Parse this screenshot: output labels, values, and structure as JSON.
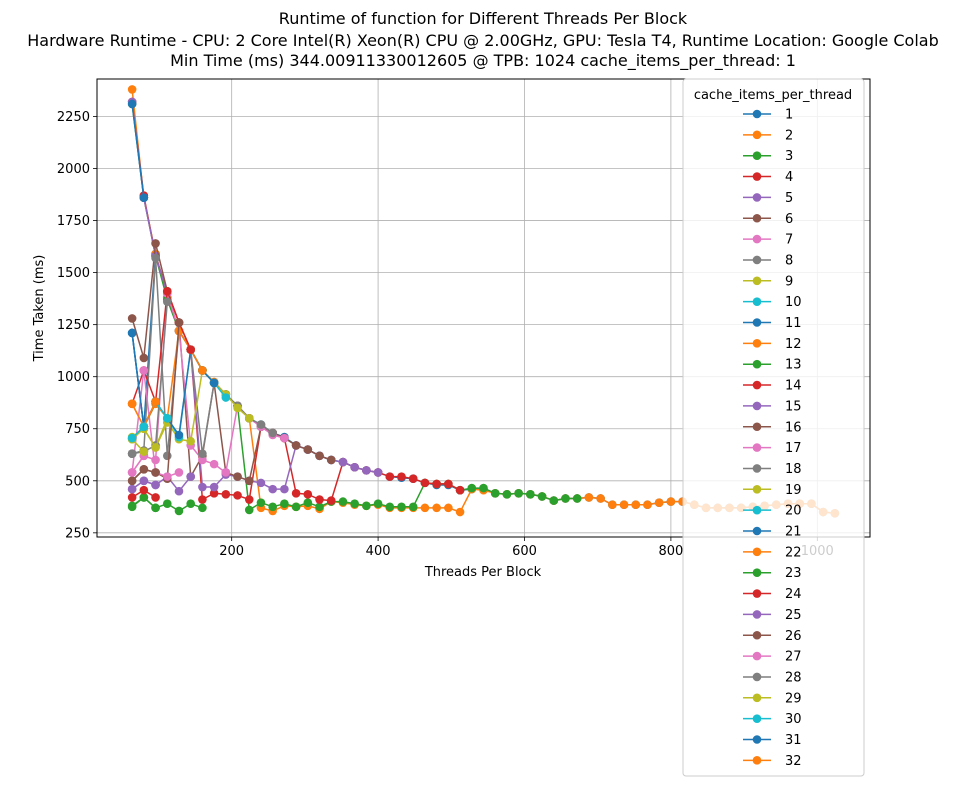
{
  "chart_data": {
    "type": "line",
    "title_lines": [
      "Runtime of function for Different Threads Per Block",
      "Hardware Runtime - CPU: 2 Core Intel(R) Xeon(R) CPU @ 2.00GHz, GPU: Tesla T4, Runtime Location: Google Colab",
      "Min Time (ms) 344.00911330012605 @ TPB: 1024 cache_items_per_thread: 1"
    ],
    "xlabel": "Threads Per Block",
    "ylabel": "Time Taken (ms)",
    "xlim": [
      16,
      1072
    ],
    "ylim": [
      230,
      2430
    ],
    "xticks": [
      200,
      400,
      600,
      800,
      1000
    ],
    "yticks": [
      250,
      500,
      750,
      1000,
      1250,
      1500,
      1750,
      2000,
      2250
    ],
    "grid": true,
    "legend": {
      "title": "cache_items_per_thread",
      "placement": "upper right"
    },
    "colors": [
      "#1f77b4",
      "#ff7f0e",
      "#2ca02c",
      "#d62728",
      "#9467bd",
      "#8c564b",
      "#e377c2",
      "#7f7f7f",
      "#bcbd22",
      "#17becf"
    ],
    "series": [
      {
        "name": "1",
        "x": [
          64,
          80,
          96,
          112,
          128,
          144,
          160,
          176,
          192,
          208,
          224,
          240,
          256,
          272,
          288,
          304,
          320,
          336,
          352,
          368,
          384,
          400,
          416,
          432,
          448,
          464,
          480,
          496,
          512,
          528,
          544,
          560,
          576,
          592,
          608,
          624,
          640,
          656,
          672,
          688,
          704,
          720,
          736,
          752,
          768,
          784,
          800,
          816,
          832,
          848,
          864,
          880,
          896,
          912,
          928,
          944,
          960,
          976,
          992,
          1008,
          1024
        ],
        "y": [
          1210,
          760,
          1590,
          1380,
          1220,
          1130,
          1030,
          970,
          915,
          860,
          800,
          770,
          730,
          710,
          670,
          650,
          620,
          600,
          590,
          565,
          550,
          540,
          520,
          515,
          510,
          490,
          480,
          480,
          455,
          460,
          460,
          440,
          435,
          440,
          435,
          425,
          405,
          415,
          415,
          420,
          415,
          385,
          385,
          385,
          385,
          395,
          400,
          400,
          385,
          370,
          370,
          370,
          370,
          375,
          380,
          385,
          390,
          390,
          390,
          350,
          344
        ]
      },
      {
        "name": "2",
        "x": [
          64,
          80,
          96,
          112,
          128,
          144,
          160,
          176,
          192,
          208,
          224,
          240,
          256,
          272,
          288,
          304,
          320,
          336,
          352,
          368,
          384,
          400,
          416,
          432,
          448,
          464,
          480,
          496,
          512,
          528,
          544,
          560,
          576,
          592,
          608,
          624,
          640,
          656,
          672,
          688,
          704,
          720,
          736,
          752,
          768,
          784,
          800,
          816,
          832,
          848,
          864,
          880,
          896,
          912,
          928,
          944,
          960,
          976,
          992,
          1008,
          1024
        ],
        "y": [
          2380,
          1860,
          1590,
          1380,
          1220,
          1130,
          1030,
          975,
          915,
          860,
          800,
          370,
          355,
          380,
          375,
          380,
          365,
          400,
          395,
          385,
          380,
          385,
          370,
          370,
          370,
          370,
          370,
          370,
          350,
          460,
          455,
          440,
          435,
          440,
          435,
          425,
          405,
          415,
          415,
          420,
          415,
          385,
          385,
          385,
          385,
          395,
          400,
          400,
          385,
          370,
          370,
          370,
          370,
          375,
          380,
          385,
          390,
          390,
          390,
          350,
          344
        ]
      },
      {
        "name": "3",
        "x": [
          64,
          80,
          96,
          112,
          128,
          144,
          160,
          176,
          192,
          208,
          224,
          240,
          256,
          272,
          288,
          304,
          320,
          336,
          352,
          368,
          384,
          400,
          416,
          432,
          448,
          464,
          480,
          496,
          512,
          528,
          544,
          560,
          576,
          592,
          608,
          624,
          640,
          656,
          672
        ],
        "y": [
          2310,
          1860,
          1580,
          1370,
          1220,
          1130,
          1030,
          970,
          915,
          860,
          360,
          395,
          375,
          390,
          375,
          395,
          375,
          400,
          400,
          390,
          380,
          390,
          375,
          375,
          375,
          490,
          485,
          485,
          455,
          465,
          465,
          440,
          435,
          440,
          435,
          425,
          405,
          415,
          415
        ]
      },
      {
        "name": "4",
        "x": [
          64,
          80,
          96,
          112,
          128,
          144,
          160,
          176,
          192,
          208,
          224,
          240,
          256,
          272,
          288,
          304,
          320,
          336,
          352,
          368,
          384,
          400,
          416,
          432,
          448,
          464,
          480,
          496,
          512
        ],
        "y": [
          2320,
          1870,
          1580,
          1410,
          1260,
          1130,
          410,
          440,
          435,
          430,
          410,
          760,
          730,
          705,
          440,
          435,
          410,
          405,
          590,
          565,
          550,
          540,
          520,
          520,
          510,
          490,
          485,
          485,
          455
        ]
      },
      {
        "name": "5",
        "x": [
          64,
          80,
          96,
          112,
          128,
          144,
          160,
          176,
          192,
          208,
          224,
          240,
          256,
          272,
          288,
          304,
          320,
          336,
          352,
          368,
          384,
          400
        ],
        "y": [
          2320,
          1860,
          1580,
          1400,
          1220,
          1130,
          470,
          470,
          530,
          520,
          500,
          490,
          460,
          460,
          670,
          650,
          620,
          600,
          590,
          565,
          550,
          540
        ]
      },
      {
        "name": "6",
        "x": [
          64,
          80,
          96,
          112,
          128,
          144,
          160,
          176,
          192,
          208,
          224,
          240,
          256,
          272,
          288,
          304,
          320,
          336
        ],
        "y": [
          1280,
          1090,
          1640,
          1410,
          1260,
          520,
          620,
          970,
          540,
          520,
          500,
          760,
          730,
          705,
          670,
          650,
          620,
          600
        ]
      },
      {
        "name": "7",
        "x": [
          64,
          80,
          96,
          112,
          128,
          144,
          160,
          176,
          192,
          208,
          224,
          240,
          256,
          272
        ],
        "y": [
          540,
          620,
          600,
          1400,
          1220,
          670,
          600,
          580,
          540,
          860,
          800,
          760,
          720,
          705
        ]
      },
      {
        "name": "8",
        "x": [
          64,
          80,
          96,
          112,
          128,
          144,
          160,
          176,
          192,
          208,
          224,
          240,
          256
        ],
        "y": [
          630,
          645,
          1570,
          620,
          1220,
          1130,
          630,
          970,
          915,
          860,
          800,
          770,
          730
        ]
      },
      {
        "name": "9",
        "x": [
          64,
          80,
          96,
          112,
          128,
          144,
          160,
          176,
          192,
          208,
          224
        ],
        "y": [
          710,
          750,
          660,
          780,
          700,
          690,
          1030,
          970,
          915,
          850,
          800
        ]
      },
      {
        "name": "10",
        "x": [
          64,
          80,
          96,
          112,
          128,
          144,
          160,
          176,
          192
        ],
        "y": [
          705,
          760,
          870,
          800,
          710,
          1130,
          1030,
          970,
          900
        ]
      },
      {
        "name": "11",
        "x": [
          64,
          80,
          96,
          112,
          128,
          144,
          160,
          176
        ],
        "y": [
          1210,
          760,
          880,
          800,
          720,
          1130,
          1030,
          970
        ]
      },
      {
        "name": "12",
        "x": [
          64,
          80,
          96,
          112,
          128,
          144,
          160
        ],
        "y": [
          870,
          760,
          870,
          800,
          1220,
          1130,
          1030
        ]
      },
      {
        "name": "13",
        "x": [
          64,
          80,
          96,
          112,
          128,
          144,
          160
        ],
        "y": [
          375,
          420,
          370,
          390,
          355,
          390,
          370
        ]
      },
      {
        "name": "14",
        "x": [
          64,
          80,
          96,
          112,
          128,
          144
        ],
        "y": [
          870,
          1030,
          880,
          1410,
          1260,
          1130
        ]
      },
      {
        "name": "15",
        "x": [
          64,
          80,
          96,
          112,
          128,
          144
        ],
        "y": [
          460,
          500,
          480,
          520,
          450,
          520
        ]
      },
      {
        "name": "16",
        "x": [
          64,
          80,
          96,
          112,
          128
        ],
        "y": [
          500,
          555,
          540,
          510,
          1260
        ]
      },
      {
        "name": "17",
        "x": [
          64,
          80,
          96,
          112,
          128
        ],
        "y": [
          540,
          1030,
          540,
          520,
          540
        ]
      },
      {
        "name": "18",
        "x": [
          64,
          80,
          96,
          112
        ],
        "y": [
          630,
          640,
          670,
          1360
        ]
      },
      {
        "name": "19",
        "x": [
          64,
          80,
          96,
          112
        ],
        "y": [
          700,
          750,
          660,
          800
        ]
      },
      {
        "name": "20",
        "x": [
          64,
          80,
          96,
          112
        ],
        "y": [
          705,
          760,
          880,
          800
        ]
      },
      {
        "name": "21",
        "x": [
          64,
          80,
          96
        ],
        "y": [
          1210,
          760,
          880
        ]
      },
      {
        "name": "22",
        "x": [
          64,
          80,
          96
        ],
        "y": [
          870,
          760,
          880
        ]
      },
      {
        "name": "23",
        "x": [
          64,
          80,
          96
        ],
        "y": [
          380,
          420,
          370
        ]
      },
      {
        "name": "24",
        "x": [
          64,
          80,
          96
        ],
        "y": [
          420,
          455,
          420
        ]
      },
      {
        "name": "25",
        "x": [
          64,
          80,
          96
        ],
        "y": [
          460,
          500,
          480
        ]
      },
      {
        "name": "26",
        "x": [
          64,
          80,
          96
        ],
        "y": [
          500,
          555,
          540
        ]
      },
      {
        "name": "27",
        "x": [
          64,
          80
        ],
        "y": [
          540,
          620
        ]
      },
      {
        "name": "28",
        "x": [
          64,
          80
        ],
        "y": [
          630,
          645
        ]
      },
      {
        "name": "29",
        "x": [
          64,
          80
        ],
        "y": [
          700,
          640
        ]
      },
      {
        "name": "30",
        "x": [
          64,
          80
        ],
        "y": [
          705,
          760
        ]
      },
      {
        "name": "31",
        "x": [
          64,
          80
        ],
        "y": [
          2310,
          1860
        ]
      },
      {
        "name": "32",
        "x": [
          64
        ],
        "y": [
          870
        ]
      }
    ]
  }
}
